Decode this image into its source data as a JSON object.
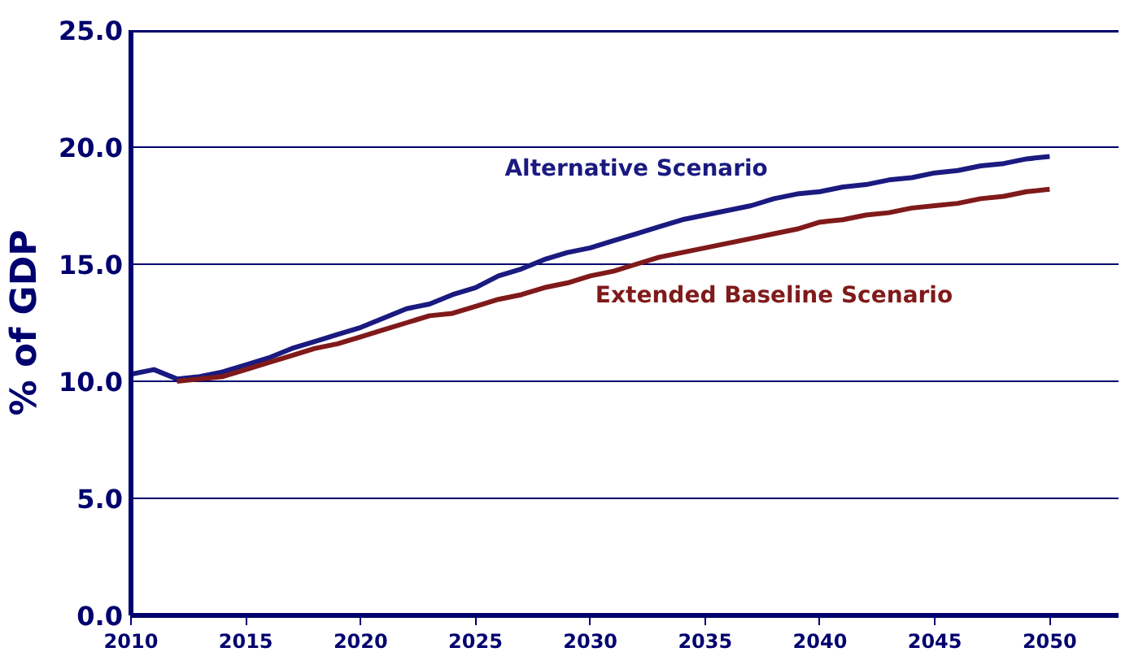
{
  "chart_data": {
    "type": "line",
    "ylabel": "% of GDP",
    "x": [
      2010,
      2011,
      2012,
      2013,
      2014,
      2015,
      2016,
      2017,
      2018,
      2019,
      2020,
      2021,
      2022,
      2023,
      2024,
      2025,
      2026,
      2027,
      2028,
      2029,
      2030,
      2031,
      2032,
      2033,
      2034,
      2035,
      2036,
      2037,
      2038,
      2039,
      2040,
      2041,
      2042,
      2043,
      2044,
      2045,
      2046,
      2047,
      2048,
      2049,
      2050
    ],
    "series": [
      {
        "name": "Alternative Scenario",
        "color": "#1a1a80",
        "values": [
          10.3,
          10.5,
          10.1,
          10.2,
          10.4,
          10.7,
          11.0,
          11.4,
          11.7,
          12.0,
          12.3,
          12.7,
          13.1,
          13.3,
          13.7,
          14.0,
          14.5,
          14.8,
          15.2,
          15.5,
          15.7,
          16.0,
          16.3,
          16.6,
          16.9,
          17.1,
          17.3,
          17.5,
          17.8,
          18.0,
          18.1,
          18.3,
          18.4,
          18.6,
          18.7,
          18.9,
          19.0,
          19.2,
          19.3,
          19.5,
          19.6
        ]
      },
      {
        "name": "Extended Baseline Scenario",
        "color": "#801a1a",
        "values": [
          null,
          null,
          10.0,
          10.1,
          10.2,
          10.5,
          10.8,
          11.1,
          11.4,
          11.6,
          11.9,
          12.2,
          12.5,
          12.8,
          12.9,
          13.2,
          13.5,
          13.7,
          14.0,
          14.2,
          14.5,
          14.7,
          15.0,
          15.3,
          15.5,
          15.7,
          15.9,
          16.1,
          16.3,
          16.5,
          16.8,
          16.9,
          17.1,
          17.2,
          17.4,
          17.5,
          17.6,
          17.8,
          17.9,
          18.1,
          18.2
        ]
      }
    ],
    "xlim": [
      2010,
      2053
    ],
    "ylim": [
      0,
      25
    ],
    "xticks": [
      2010,
      2015,
      2020,
      2025,
      2030,
      2035,
      2040,
      2045,
      2050
    ],
    "yticks": [
      {
        "value": 0,
        "label": "0.0"
      },
      {
        "value": 5,
        "label": "5.0"
      },
      {
        "value": 10,
        "label": "10.0"
      },
      {
        "value": 15,
        "label": "15.0"
      },
      {
        "value": 20,
        "label": "20.0"
      },
      {
        "value": 25,
        "label": "25.0"
      }
    ],
    "grid": "y",
    "legend": false
  }
}
